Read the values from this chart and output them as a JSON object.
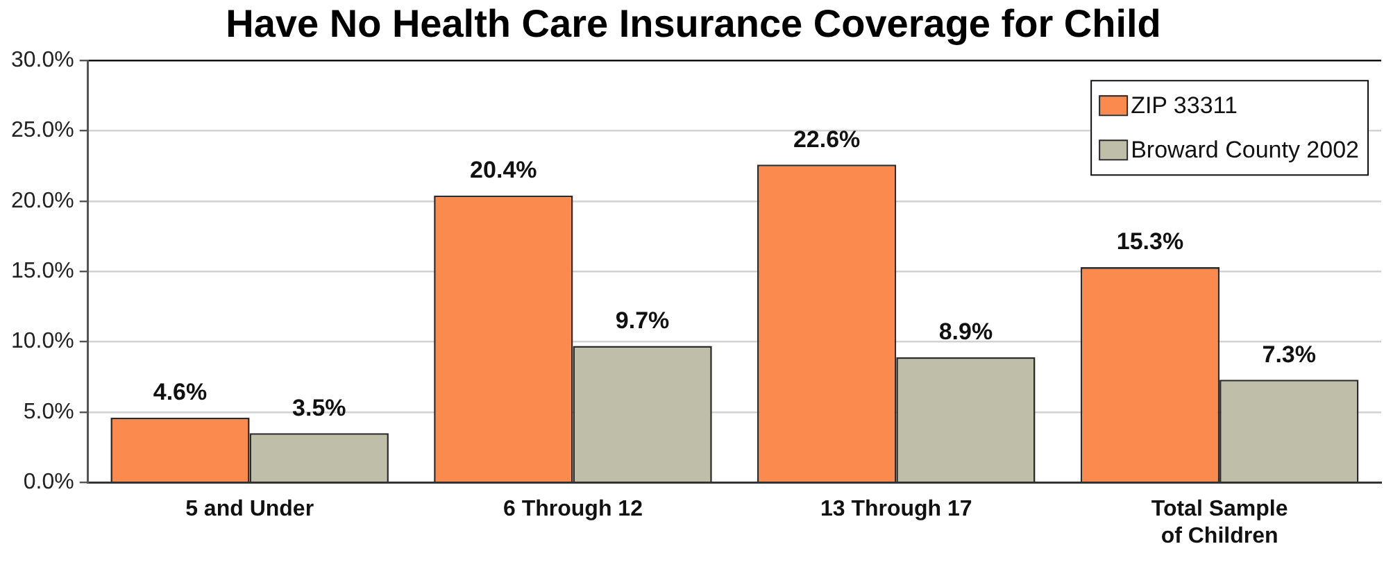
{
  "chart_data": {
    "type": "bar",
    "title": "Have No Health Care Insurance Coverage for Child",
    "categories": [
      "5 and Under",
      "6 Through 12",
      "13 Through 17",
      "Total Sample of Children"
    ],
    "series": [
      {
        "name": "ZIP 33311",
        "color": "#fb8a4f",
        "values": [
          4.6,
          20.4,
          22.6,
          15.3
        ],
        "value_labels": [
          "4.6%",
          "20.4%",
          "22.6%",
          "15.3%"
        ]
      },
      {
        "name": "Broward County 2002",
        "color": "#bfbea8",
        "values": [
          3.5,
          9.7,
          8.9,
          7.3
        ],
        "value_labels": [
          "3.5%",
          "9.7%",
          "8.9%",
          "7.3%"
        ]
      }
    ],
    "ylim": [
      0,
      30
    ],
    "yticks": [
      {
        "value": 0,
        "label": "0.0%"
      },
      {
        "value": 5,
        "label": "5.0%"
      },
      {
        "value": 10,
        "label": "10.0%"
      },
      {
        "value": 15,
        "label": "15.0%"
      },
      {
        "value": 20,
        "label": "20.0%"
      },
      {
        "value": 25,
        "label": "25.0%"
      },
      {
        "value": 30,
        "label": "30.0%"
      }
    ],
    "grid": "y",
    "legend": "top right"
  }
}
